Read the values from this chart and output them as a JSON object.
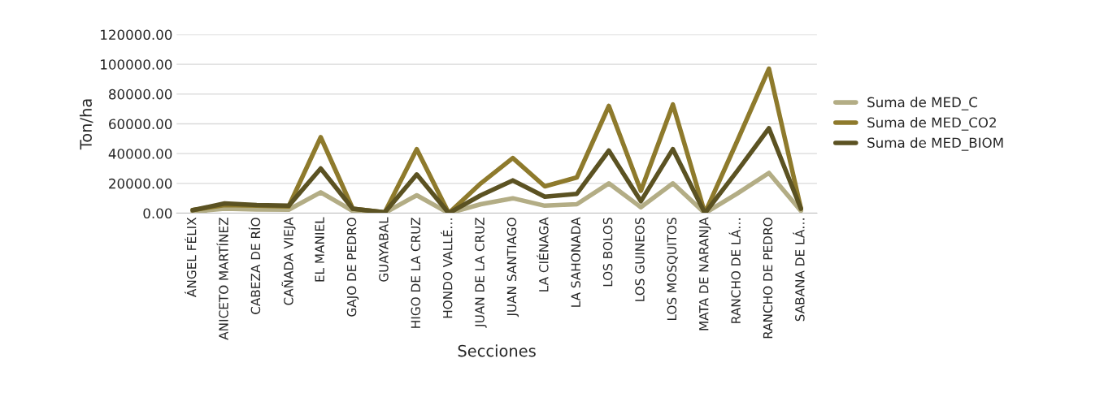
{
  "chart_data": {
    "type": "line",
    "xlabel": "Secciones",
    "ylabel": "Ton/ha",
    "categories": [
      "ÁNGEL FÉLIX",
      "ANICETO MARTÍNEZ",
      "CABEZA DE RÍO",
      "CAÑADA VIEJA",
      "EL MANIEL",
      "GAJO DE PEDRO",
      "GUAYABAL",
      "HIGO DE LA CRUZ",
      "HONDO VALLÉ…",
      "JUAN DE LA CRUZ",
      "JUAN SANTIAGO",
      "LA CIÉNAGA",
      "LA SAHONADA",
      "LOS BOLOS",
      "LOS GUINEOS",
      "LOS MOSQUITOS",
      "MATA DE NARANJA",
      "RANCHO DE LÁ…",
      "RANCHO DE PEDRO",
      "SABANA DE LÁ…"
    ],
    "series": [
      {
        "name": "Suma de MED_C",
        "color": "#b3ad85",
        "values": [
          1000,
          3000,
          2500,
          2300,
          14000,
          1500,
          200,
          12000,
          0,
          6000,
          10000,
          5000,
          6000,
          20000,
          4000,
          20000,
          0,
          13000,
          27000,
          1500
        ]
      },
      {
        "name": "Suma de MED_CO2",
        "color": "#8e7a2c",
        "values": [
          2000,
          5500,
          5000,
          4500,
          51000,
          3000,
          500,
          43000,
          0,
          20000,
          37000,
          18000,
          24000,
          72000,
          15000,
          73000,
          0,
          48000,
          97000,
          3000
        ]
      },
      {
        "name": "Suma de MED_BIOM",
        "color": "#5b5222",
        "values": [
          2000,
          6500,
          5500,
          5000,
          30000,
          3000,
          500,
          26000,
          0,
          12000,
          22000,
          11000,
          13000,
          42000,
          8000,
          43000,
          0,
          28000,
          57000,
          3000
        ]
      }
    ],
    "ylim": [
      0,
      120000
    ],
    "yticks": [
      {
        "value": 0,
        "label": "0.00"
      },
      {
        "value": 20000,
        "label": "20000.00"
      },
      {
        "value": 40000,
        "label": "40000.00"
      },
      {
        "value": 60000,
        "label": "60000.00"
      },
      {
        "value": 80000,
        "label": "80000.00"
      },
      {
        "value": 100000,
        "label": "100000.00"
      },
      {
        "value": 120000,
        "label": "120000.00"
      }
    ],
    "grid": "y",
    "legend": "right",
    "marker": "none",
    "line_style": "solid"
  }
}
